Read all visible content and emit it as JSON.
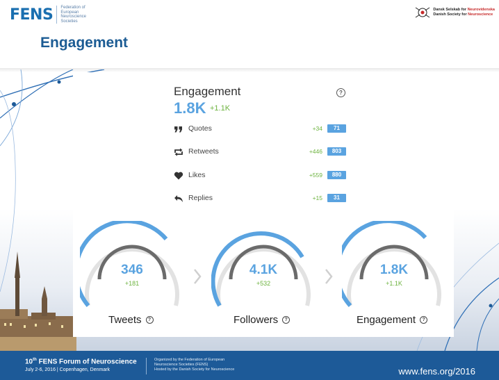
{
  "header": {
    "fens_logo": "FENS",
    "fens_logo_sub": "Federation of European Neuroscience Societies",
    "dsn_logo_line1_a": "Dansk Selskab for ",
    "dsn_logo_line1_b": "Neurovidenska",
    "dsn_logo_line2_a": "Danish Society for ",
    "dsn_logo_line2_b": "Neuroscience",
    "page_title": "Engagement"
  },
  "engagement": {
    "title": "Engagement",
    "help": "?",
    "value": "1.8K",
    "delta": "+1.1K",
    "metrics": [
      {
        "label": "Quotes",
        "delta": "+34",
        "count": "71",
        "icon": "quote-icon"
      },
      {
        "label": "Retweets",
        "delta": "+446",
        "count": "803",
        "icon": "retweet-icon"
      },
      {
        "label": "Likes",
        "delta": "+559",
        "count": "880",
        "icon": "heart-icon"
      },
      {
        "label": "Replies",
        "delta": "+15",
        "count": "31",
        "icon": "reply-icon"
      }
    ]
  },
  "gauges": [
    {
      "label": "Tweets",
      "value": "346",
      "delta": "+181",
      "help": "?"
    },
    {
      "label": "Followers",
      "value": "4.1K",
      "delta": "+532",
      "help": "?"
    },
    {
      "label": "Engagement",
      "value": "1.8K",
      "delta": "+1.1K",
      "help": "?"
    }
  ],
  "footer": {
    "title_prefix": "10",
    "title_sup": "th",
    "title_rest": " FENS Forum of Neuroscience",
    "dates": "July 2-6, 2016 | Copenhagen, Denmark",
    "organizer_1": "Organized by the Federation of European",
    "organizer_2": "Neuroscience Societies (FENS)",
    "organizer_3": "Hosted by the Danish Society for Neuroscience",
    "url": "www.fens.org/2016"
  },
  "colors": {
    "brand_blue": "#1d5a98",
    "accent_blue": "#5aa3e0",
    "positive_green": "#6db33f",
    "gauge_dark": "#6b6b6b"
  }
}
